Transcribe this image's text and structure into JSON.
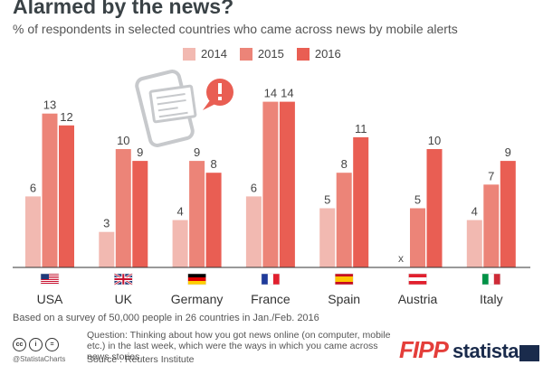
{
  "title": "Alarmed by the news?",
  "subtitle": "% of respondents in selected countries who came across news by mobile alerts",
  "footnote": "Based on a survey of 50,000 people in 26 countries in Jan./Feb. 2016",
  "question": "Question: Thinking about how you got news online (on computer, mobile etc.) in the last week, which were the ways in which you came across news stories",
  "source": "Source : Reuters Institute",
  "handle": "@StatistaCharts",
  "cc_icons": [
    "cc",
    "i",
    "="
  ],
  "brands": {
    "fipp": "FIPP",
    "statista": "statista"
  },
  "colors": {
    "2014": "#f2b9b1",
    "2015": "#ec8478",
    "2016": "#e95e53",
    "axis": "#333333",
    "label": "#555555"
  },
  "missing_marker": "x",
  "chart_data": {
    "type": "bar",
    "categories": [
      "USA",
      "UK",
      "Germany",
      "France",
      "Spain",
      "Austria",
      "Italy"
    ],
    "series": [
      {
        "name": "2014",
        "values": [
          6,
          3,
          4,
          6,
          5,
          null,
          4
        ]
      },
      {
        "name": "2015",
        "values": [
          13,
          10,
          9,
          14,
          8,
          5,
          7
        ]
      },
      {
        "name": "2016",
        "values": [
          12,
          9,
          8,
          14,
          11,
          10,
          9
        ]
      }
    ],
    "ylim": [
      0,
      16
    ],
    "grid": false,
    "legend": "top-center",
    "flags": [
      "usa-flag",
      "uk-flag",
      "germany-flag",
      "france-flag",
      "spain-flag",
      "austria-flag",
      "italy-flag"
    ]
  }
}
